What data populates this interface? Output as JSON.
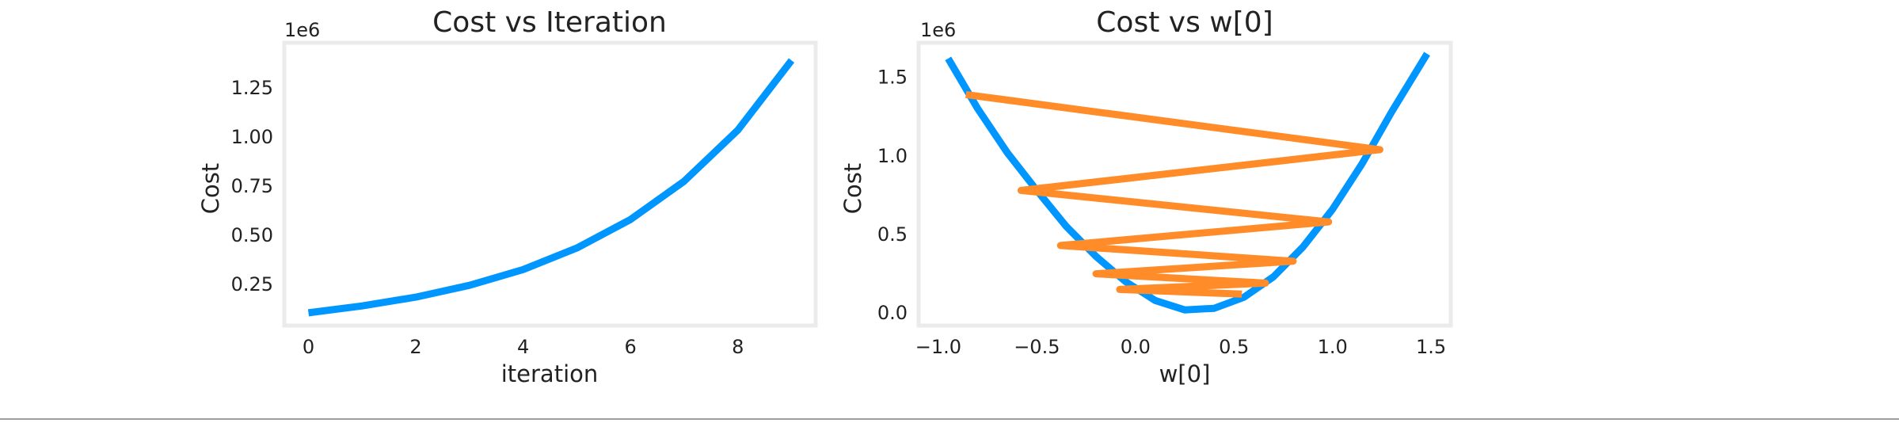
{
  "colors": {
    "cost_curve": "#0096ff",
    "path": "#ff8c28",
    "frame": "#ebebeb"
  },
  "chart_data": [
    {
      "type": "line",
      "title": "Cost vs Iteration",
      "xlabel": "iteration",
      "ylabel": "Cost",
      "y_offset_label": "1e6",
      "xlim": [
        -0.45,
        9.45
      ],
      "ylim": [
        0.04,
        1.48
      ],
      "xticks": [
        0,
        2,
        4,
        6,
        8
      ],
      "xtick_labels": [
        "0",
        "2",
        "4",
        "6",
        "8"
      ],
      "yticks": [
        0.25,
        0.5,
        0.75,
        1.0,
        1.25
      ],
      "ytick_labels": [
        "0.25",
        "0.50",
        "0.75",
        "1.00",
        "1.25"
      ],
      "grid": false,
      "series": [
        {
          "color": "#0096ff",
          "x": [
            0,
            1,
            2,
            3,
            4,
            5,
            6,
            7,
            8,
            9
          ],
          "y": [
            0.105,
            0.14,
            0.185,
            0.245,
            0.325,
            0.435,
            0.58,
            0.775,
            1.035,
            1.39
          ]
        }
      ]
    },
    {
      "type": "line",
      "title": "Cost vs w[0]",
      "xlabel": "w[0]",
      "ylabel": "Cost",
      "y_offset_label": "1e6",
      "xlim": [
        -1.1,
        1.6
      ],
      "ylim": [
        -0.08,
        1.72
      ],
      "xticks": [
        -1.0,
        -0.5,
        0.0,
        0.5,
        1.0,
        1.5
      ],
      "xtick_labels": [
        "−1.0",
        "−0.5",
        "0.0",
        "0.5",
        "1.0",
        "1.5"
      ],
      "yticks": [
        0.0,
        0.5,
        1.0,
        1.5
      ],
      "ytick_labels": [
        "0.0",
        "0.5",
        "1.0",
        "1.5"
      ],
      "grid": false,
      "series": [
        {
          "color": "#0096ff",
          "x": [
            -0.95,
            -0.8,
            -0.65,
            -0.5,
            -0.35,
            -0.2,
            -0.05,
            0.1,
            0.25,
            0.4,
            0.55,
            0.7,
            0.85,
            1.0,
            1.15,
            1.3,
            1.48
          ],
          "y": [
            1.62,
            1.3,
            1.02,
            0.78,
            0.55,
            0.36,
            0.2,
            0.08,
            0.02,
            0.03,
            0.1,
            0.23,
            0.42,
            0.66,
            0.95,
            1.28,
            1.65
          ]
        },
        {
          "color": "#ff8c28",
          "x": [
            -0.86,
            1.24,
            -0.58,
            0.98,
            -0.38,
            0.8,
            -0.2,
            0.66,
            -0.08,
            0.54
          ],
          "y": [
            1.39,
            1.04,
            0.78,
            0.58,
            0.43,
            0.33,
            0.25,
            0.19,
            0.15,
            0.12
          ]
        }
      ]
    }
  ]
}
